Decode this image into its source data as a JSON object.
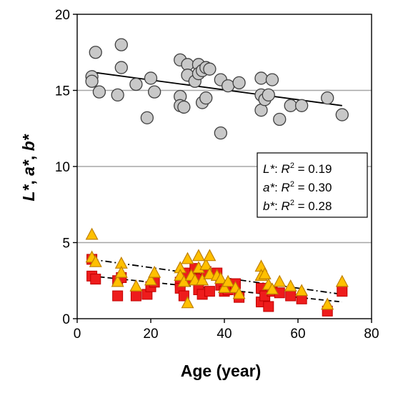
{
  "chart_data": {
    "type": "scatter",
    "xlabel": "Age (year)",
    "ylabel": [
      "L*",
      ", ",
      "a*",
      ", ",
      "b*"
    ],
    "xlim": [
      0,
      80
    ],
    "ylim": [
      0,
      20
    ],
    "xticks": [
      "0",
      "20",
      "40",
      "60",
      "80"
    ],
    "yticks": [
      "0",
      "5",
      "10",
      "15",
      "20"
    ],
    "grid": "horizontal",
    "legend_placement": "middle-right",
    "legend": [
      {
        "var": "L*",
        "sep": ": ",
        "r": "R",
        "sup": "2",
        "value": " = 0.19"
      },
      {
        "var": "a*",
        "sep": ": ",
        "r": "R",
        "sup": "2",
        "value": " = 0.30"
      },
      {
        "var": "b*",
        "sep": ": ",
        "r": "R",
        "sup": "2",
        "value": " = 0.28"
      }
    ],
    "colors": {
      "L_fill": "#c8c8c8",
      "L_stroke": "#404040",
      "a_fill": "#ee1c1c",
      "a_stroke": "#c00000",
      "b_fill": "#ffc000",
      "b_stroke": "#c08000",
      "grid": "#a6a6a6",
      "axis": "#000000"
    },
    "series": [
      {
        "key": "L",
        "marker": "circle",
        "x": [
          4,
          4,
          5,
          6,
          11,
          12,
          12,
          16,
          19,
          20,
          21,
          28,
          28,
          28,
          29,
          30,
          30,
          32,
          33,
          33,
          34,
          34,
          35,
          35,
          36,
          39,
          39,
          41,
          44,
          50,
          50,
          50,
          51,
          52,
          53,
          55,
          58,
          61,
          68,
          72
        ],
        "y": [
          15.9,
          15.6,
          17.5,
          14.9,
          14.7,
          18.0,
          16.5,
          15.4,
          13.2,
          15.8,
          14.9,
          17.0,
          14.6,
          14.0,
          13.9,
          16.7,
          16.0,
          15.6,
          16.7,
          16.1,
          14.2,
          16.3,
          14.5,
          16.5,
          16.4,
          15.7,
          12.2,
          15.3,
          15.5,
          15.8,
          14.7,
          13.7,
          14.4,
          14.7,
          15.7,
          13.1,
          14.0,
          14.0,
          14.5,
          13.4
        ],
        "trend": {
          "x": [
            4,
            72
          ],
          "y": [
            16.2,
            14.0
          ],
          "style": "solid"
        }
      },
      {
        "key": "a",
        "marker": "square",
        "x": [
          4,
          4,
          5,
          11,
          11,
          12,
          16,
          19,
          20,
          21,
          28,
          28,
          29,
          30,
          30,
          32,
          33,
          33,
          34,
          35,
          36,
          38,
          39,
          40,
          41,
          43,
          44,
          50,
          50,
          51,
          52,
          53,
          55,
          58,
          61,
          68,
          72
        ],
        "y": [
          3.9,
          2.8,
          2.6,
          1.5,
          2.5,
          2.7,
          1.5,
          1.6,
          2.1,
          2.4,
          2.4,
          2.0,
          1.5,
          2.6,
          3.0,
          3.3,
          2.6,
          1.9,
          1.6,
          3.1,
          1.8,
          3.0,
          2.2,
          1.8,
          1.9,
          2.3,
          1.4,
          2.0,
          1.1,
          1.5,
          0.8,
          1.8,
          1.7,
          1.5,
          1.3,
          0.5,
          1.8
        ],
        "trend": {
          "x": [
            4,
            72
          ],
          "y": [
            2.8,
            1.1
          ],
          "style": "dashed"
        }
      },
      {
        "key": "b",
        "marker": "triangle",
        "x": [
          4,
          4,
          5,
          11,
          12,
          12,
          16,
          20,
          21,
          28,
          28,
          29,
          30,
          30,
          31,
          32,
          33,
          33,
          34,
          35,
          36,
          36,
          38,
          39,
          40,
          41,
          43,
          44,
          50,
          50,
          51,
          52,
          53,
          55,
          58,
          61,
          68,
          72
        ],
        "y": [
          5.5,
          4.0,
          3.7,
          2.4,
          3.6,
          3.0,
          2.1,
          2.5,
          3.0,
          3.3,
          2.8,
          2.4,
          3.9,
          1.0,
          2.8,
          2.5,
          4.1,
          3.3,
          2.5,
          3.5,
          4.1,
          2.9,
          2.8,
          2.6,
          2.0,
          2.4,
          2.0,
          1.6,
          3.4,
          2.8,
          2.9,
          2.2,
          1.9,
          2.4,
          2.1,
          1.8,
          0.9,
          2.4
        ],
        "trend": {
          "x": [
            4,
            72
          ],
          "y": [
            3.9,
            1.6
          ],
          "style": "dashdot"
        }
      }
    ]
  }
}
